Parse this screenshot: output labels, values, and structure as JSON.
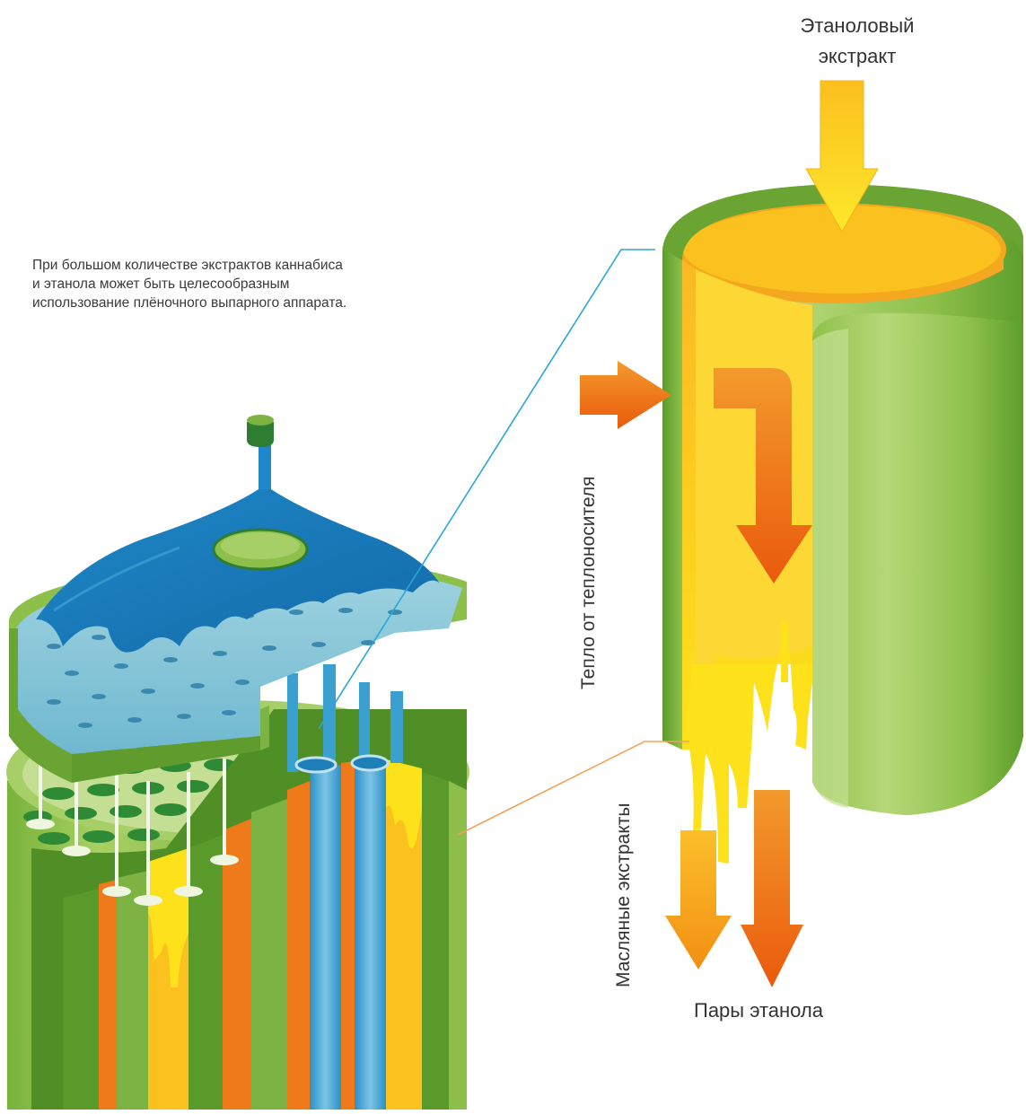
{
  "labels": {
    "inlet": "Этаноловый\nэкстракт",
    "heat": "Тепло от теплоносителя",
    "oil": "Масляные экстракты",
    "vapor": "Пары этанола"
  },
  "note": "При большом количестве экстрактов каннабиса\nи этанола может быть целесообразным\nиспользование плёночного выпарного аппарата.",
  "colors": {
    "green": "#7cb342",
    "dark_green": "#2e7d32",
    "yellow": "#fdd835",
    "orange": "#f57c00",
    "blue": "#1e88c8",
    "leader_blue": "#29a7d8",
    "leader_orange": "#f5a05a"
  }
}
